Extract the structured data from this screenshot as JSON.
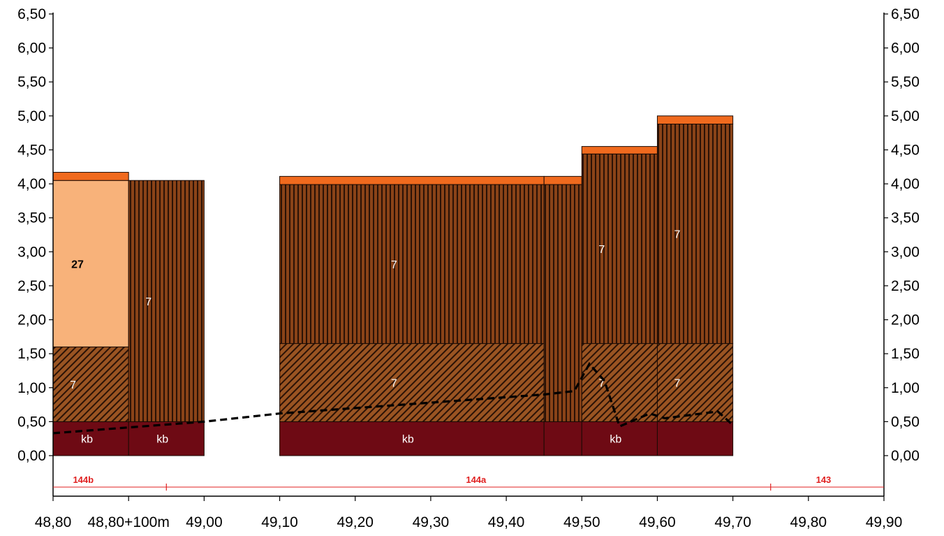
{
  "chart_data": {
    "type": "bar",
    "x_ticks": [
      "48,80",
      "48,80+100m",
      "49,00",
      "49,10",
      "49,20",
      "49,30",
      "49,40",
      "49,50",
      "49,60",
      "49,70",
      "49,80",
      "49,90"
    ],
    "y_ticks": [
      "0,00",
      "0,50",
      "1,00",
      "1,50",
      "2,00",
      "2,50",
      "3,00",
      "3,50",
      "4,00",
      "4,50",
      "5,00",
      "5,50",
      "6,00",
      "6,50"
    ],
    "ylim": [
      0,
      6.5
    ],
    "xlim": [
      48.8,
      49.9
    ],
    "grid": false,
    "columns": [
      {
        "x0": 48.8,
        "x1": 48.9,
        "layers": [
          {
            "from": 0.0,
            "to": 0.5,
            "material": "kb",
            "label": "kb"
          },
          {
            "from": 0.5,
            "to": 1.6,
            "material": "diagonal",
            "label": "7"
          },
          {
            "from": 1.6,
            "to": 4.05,
            "material": "light",
            "label": "27"
          },
          {
            "from": 4.05,
            "to": 4.17,
            "material": "top",
            "label": ""
          }
        ]
      },
      {
        "x0": 48.9,
        "x1": 49.0,
        "layers": [
          {
            "from": 0.0,
            "to": 0.5,
            "material": "kb",
            "label": "kb"
          },
          {
            "from": 0.5,
            "to": 4.05,
            "material": "vertical",
            "label": "7"
          }
        ]
      },
      {
        "x0": 49.1,
        "x1": 49.45,
        "layers": [
          {
            "from": 0.0,
            "to": 0.5,
            "material": "kb",
            "label": "kb"
          },
          {
            "from": 0.5,
            "to": 1.65,
            "material": "diagonal",
            "label": "7"
          },
          {
            "from": 1.65,
            "to": 3.99,
            "material": "vertical",
            "label": "7"
          },
          {
            "from": 3.99,
            "to": 4.11,
            "material": "top",
            "label": ""
          }
        ]
      },
      {
        "x0": 49.45,
        "x1": 49.5,
        "layers": [
          {
            "from": 0.0,
            "to": 0.5,
            "material": "kb",
            "label": ""
          },
          {
            "from": 0.5,
            "to": 3.99,
            "material": "vertical",
            "label": ""
          },
          {
            "from": 3.99,
            "to": 4.11,
            "material": "top",
            "label": ""
          }
        ]
      },
      {
        "x0": 49.5,
        "x1": 49.6,
        "layers": [
          {
            "from": 0.0,
            "to": 0.5,
            "material": "kb",
            "label": "kb"
          },
          {
            "from": 0.5,
            "to": 1.65,
            "material": "diagonal",
            "label": "7"
          },
          {
            "from": 1.65,
            "to": 4.44,
            "material": "vertical",
            "label": "7"
          },
          {
            "from": 4.44,
            "to": 4.55,
            "material": "top",
            "label": ""
          }
        ]
      },
      {
        "x0": 49.6,
        "x1": 49.7,
        "layers": [
          {
            "from": 0.0,
            "to": 0.5,
            "material": "kb",
            "label": ""
          },
          {
            "from": 0.5,
            "to": 1.65,
            "material": "diagonal",
            "label": "7"
          },
          {
            "from": 1.65,
            "to": 4.88,
            "material": "vertical",
            "label": "7"
          },
          {
            "from": 4.88,
            "to": 5.0,
            "material": "top",
            "label": ""
          }
        ]
      }
    ],
    "dashed_line": [
      {
        "x": 48.8,
        "y": 0.33
      },
      {
        "x": 49.0,
        "y": 0.5
      },
      {
        "x": 49.1,
        "y": 0.62
      },
      {
        "x": 49.45,
        "y": 0.9
      },
      {
        "x": 49.49,
        "y": 0.95
      },
      {
        "x": 49.51,
        "y": 1.35
      },
      {
        "x": 49.53,
        "y": 1.1
      },
      {
        "x": 49.55,
        "y": 0.43
      },
      {
        "x": 49.59,
        "y": 0.62
      },
      {
        "x": 49.61,
        "y": 0.55
      },
      {
        "x": 49.68,
        "y": 0.65
      },
      {
        "x": 49.7,
        "y": 0.45
      }
    ],
    "sections": [
      {
        "label": "144b",
        "x_label": 48.84
      },
      {
        "label": "144a",
        "x_label": 49.36
      },
      {
        "label": "143",
        "x_label": 49.82
      }
    ],
    "section_markers": [
      48.95,
      49.75
    ],
    "colors": {
      "kb": "#6e0a14",
      "diagonal": "#8f4a1c",
      "vertical": "#7a3612",
      "light": "#f8b27a",
      "top": "#f06a1e",
      "section": "#e02020"
    }
  }
}
